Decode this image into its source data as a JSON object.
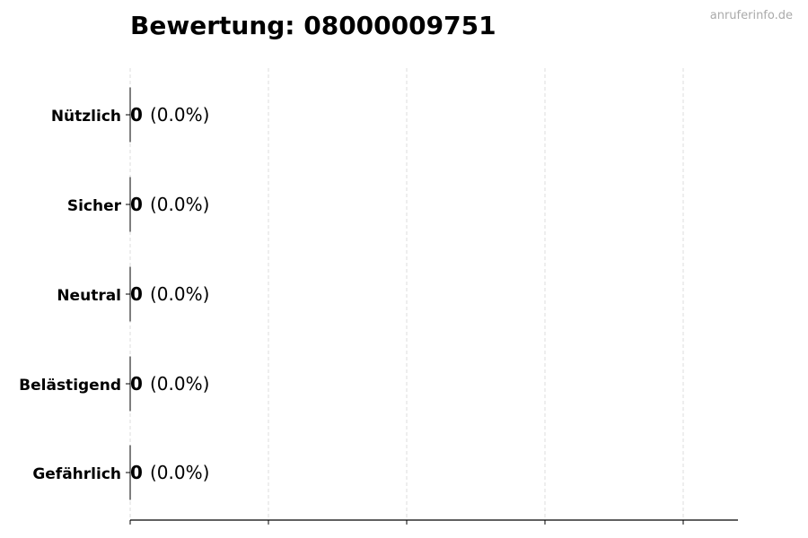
{
  "chart_data": {
    "type": "bar",
    "orientation": "horizontal",
    "title": "Bewertung: 08000009751",
    "categories": [
      "Nützlich",
      "Sicher",
      "Neutral",
      "Belästigend",
      "Gefährlich"
    ],
    "values": [
      0,
      0,
      0,
      0,
      0
    ],
    "value_labels": [
      "0",
      "0",
      "0",
      "0",
      "0"
    ],
    "percent_labels": [
      "(0.0%)",
      "(0.0%)",
      "(0.0%)",
      "(0.0%)",
      "(0.0%)"
    ],
    "xlabel": "",
    "ylabel": "",
    "grid": "x-axis dashed",
    "x_tick_labels": "none shown",
    "colors": {
      "grid": "#dddddd",
      "bar_edge": "#000000",
      "watermark": "#aaaaaa"
    }
  },
  "watermark": "anruferinfo.de"
}
